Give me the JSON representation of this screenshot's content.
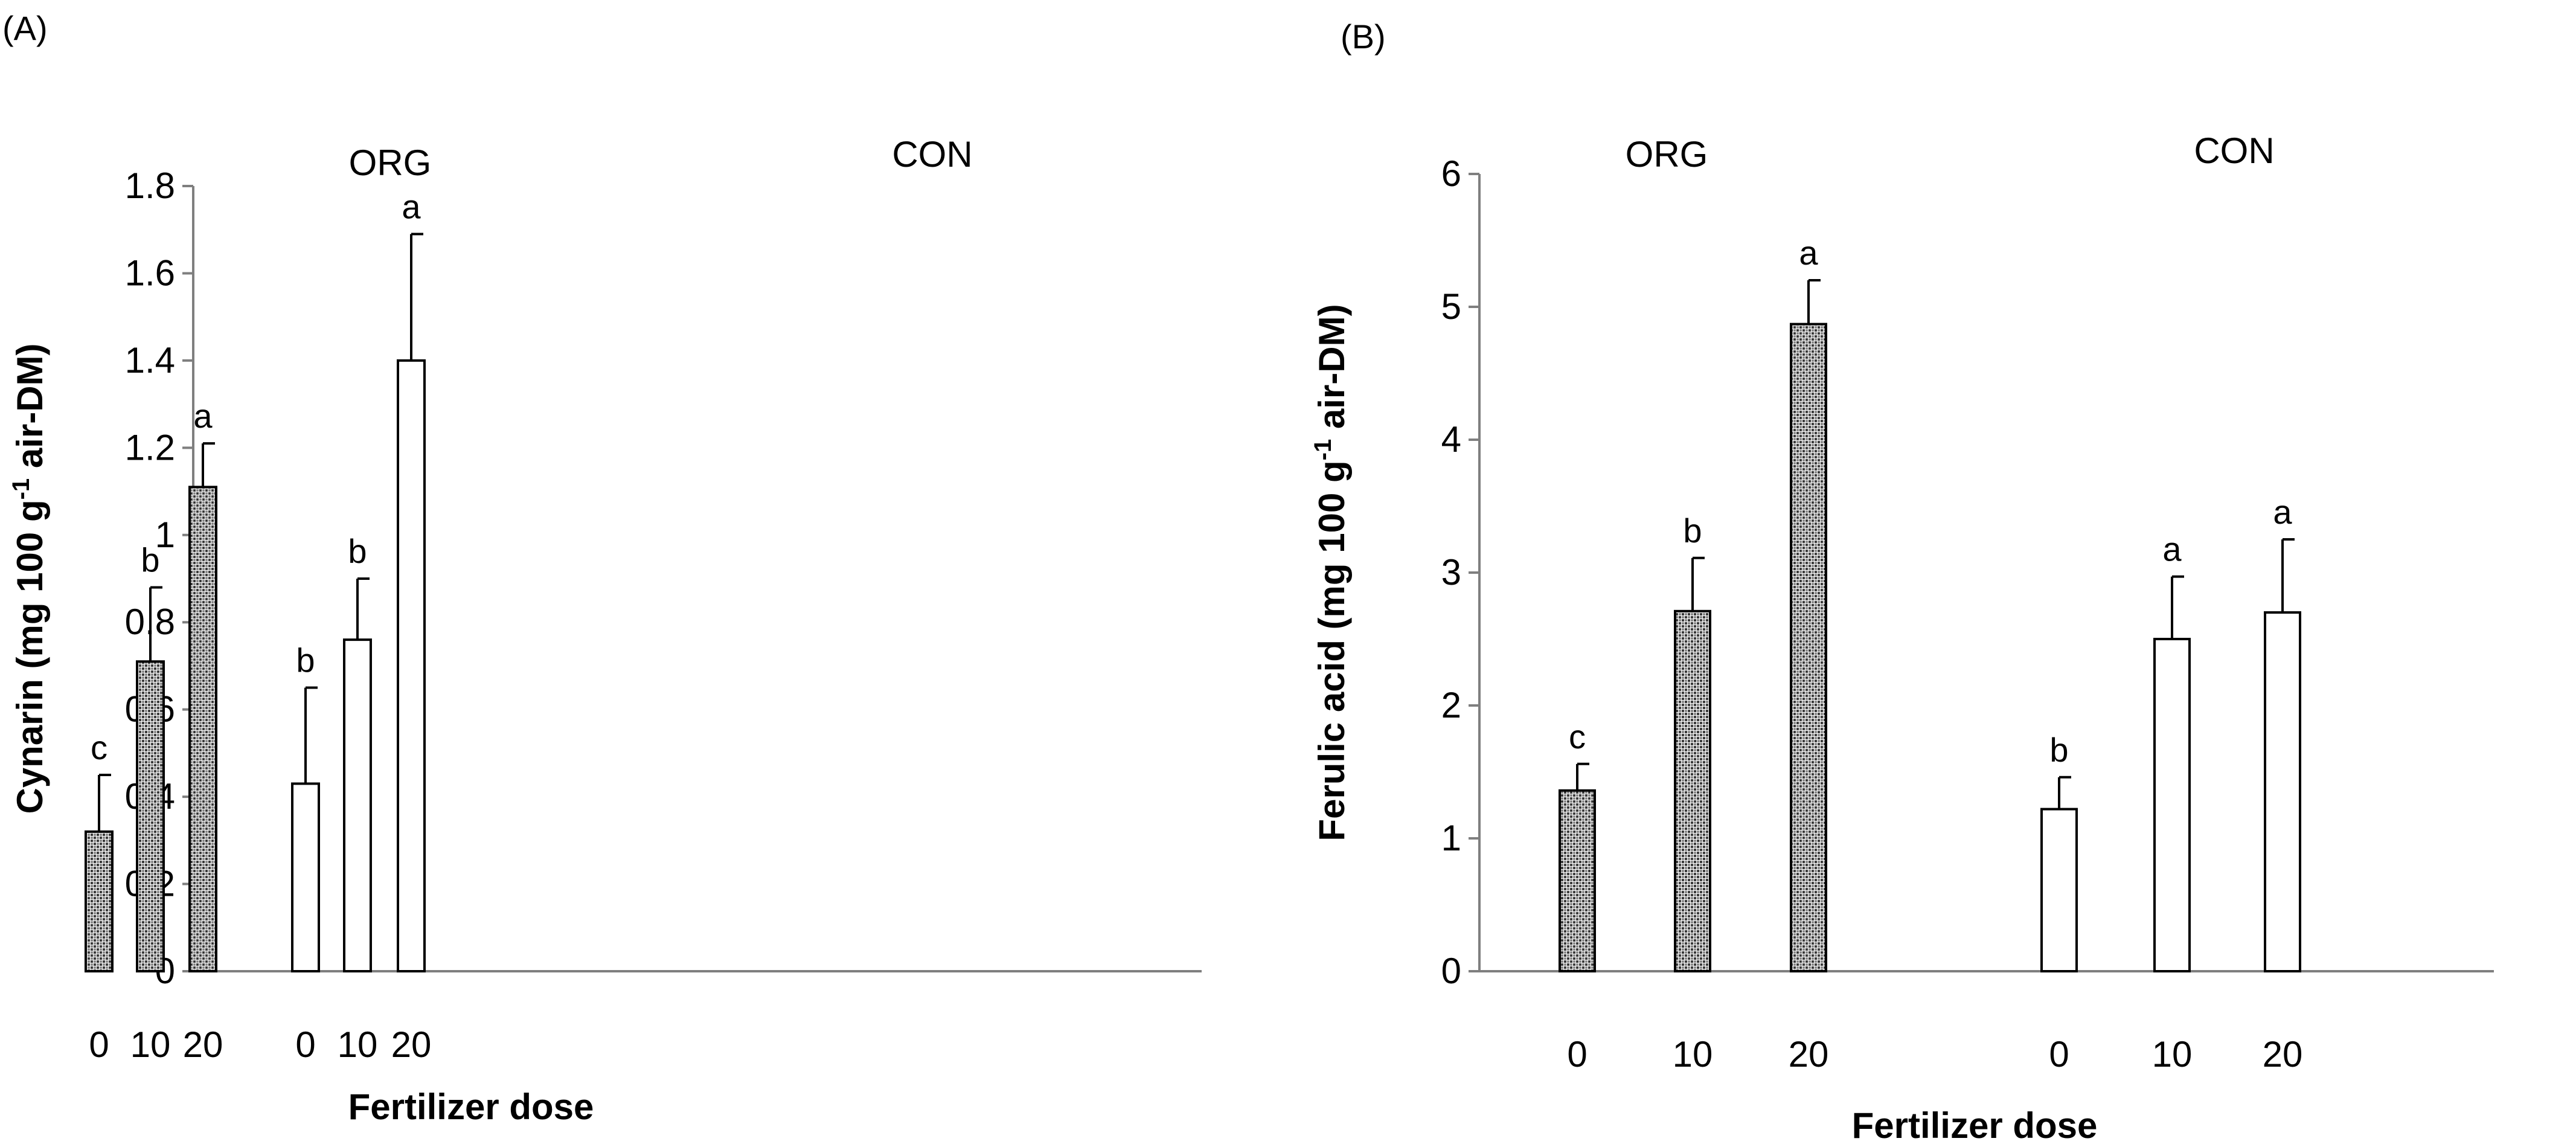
{
  "chart_data": [
    {
      "type": "bar",
      "panel": "(A)",
      "ylabel_main": "Cynarin (mg 100 g",
      "ylabel_sup": "-1",
      "ylabel_end": " air-DM)",
      "xlabel": "Fertilizer dose",
      "ylim": [
        0,
        1.8
      ],
      "yticks": [
        "0",
        "0.2",
        "0.4",
        "0.6",
        "0.8",
        "1",
        "1.2",
        "1.4",
        "1.6",
        "1.8"
      ],
      "yticks_values": [
        0,
        0.2,
        0.4,
        0.6,
        0.8,
        1.0,
        1.2,
        1.4,
        1.6,
        1.8
      ],
      "groups": [
        {
          "name": "ORG",
          "style": "hatched",
          "categories": [
            "0",
            "10",
            "20"
          ],
          "values": [
            0.32,
            0.71,
            1.11
          ],
          "errors": [
            0.13,
            0.17,
            0.1
          ],
          "letters": [
            "c",
            "b",
            "a"
          ]
        },
        {
          "name": "CON",
          "style": "open",
          "categories": [
            "0",
            "10",
            "20"
          ],
          "values": [
            0.43,
            0.76,
            1.4
          ],
          "errors": [
            0.22,
            0.14,
            0.29
          ],
          "letters": [
            "b",
            "b",
            "a"
          ]
        }
      ]
    },
    {
      "type": "bar",
      "panel": "(B)",
      "ylabel_main": "Ferulic acid (mg 100 g",
      "ylabel_sup": "-1",
      "ylabel_end": " air-DM)",
      "xlabel": "Fertilizer dose",
      "ylim": [
        0,
        6
      ],
      "yticks": [
        "0",
        "1",
        "2",
        "3",
        "4",
        "5",
        "6"
      ],
      "yticks_values": [
        0,
        1,
        2,
        3,
        4,
        5,
        6
      ],
      "groups": [
        {
          "name": "ORG",
          "style": "hatched",
          "categories": [
            "0",
            "10",
            "20"
          ],
          "values": [
            1.36,
            2.71,
            4.87
          ],
          "errors": [
            0.2,
            0.4,
            0.33
          ],
          "letters": [
            "c",
            "b",
            "a"
          ]
        },
        {
          "name": "CON",
          "style": "open",
          "categories": [
            "0",
            "10",
            "20"
          ],
          "values": [
            1.22,
            2.5,
            2.7
          ],
          "errors": [
            0.24,
            0.47,
            0.55
          ],
          "letters": [
            "b",
            "a",
            "a"
          ]
        }
      ]
    }
  ]
}
